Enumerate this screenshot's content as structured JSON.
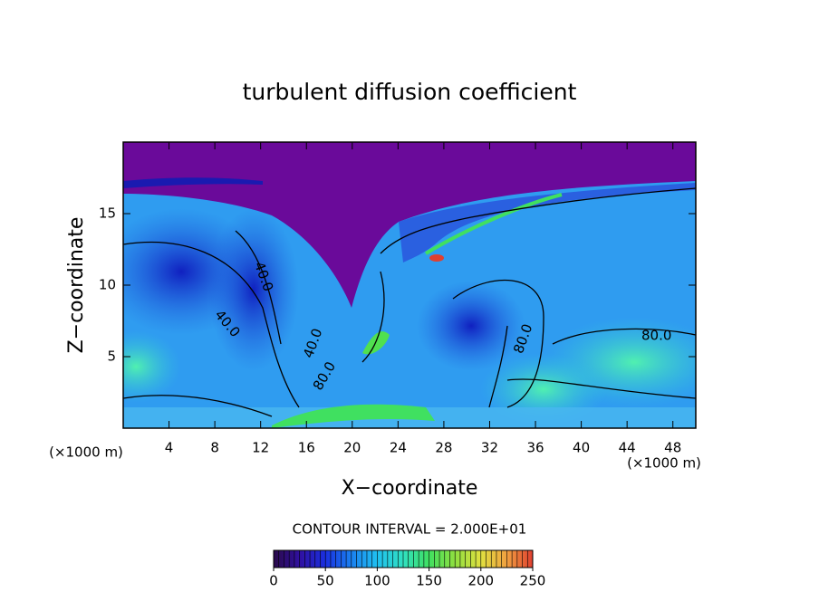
{
  "chart_data": {
    "type": "contour",
    "title": "turbulent diffusion coefficient",
    "x_label": "X−coordinate",
    "y_label": "Z−coordinate",
    "x_unit_left": "(×1000 m)",
    "x_unit_right": "(×1000 m)",
    "xlim": [
      0,
      50
    ],
    "xticks": [
      4,
      8,
      12,
      16,
      20,
      24,
      28,
      32,
      36,
      40,
      44,
      48
    ],
    "ylim": [
      0,
      20
    ],
    "yticks": [
      5,
      10,
      15
    ],
    "contour_interval_label": "CONTOUR INTERVAL = 2.000E+01",
    "annotations": [
      "40.0",
      "40.0",
      "80.0",
      "80.0",
      "40.0",
      "80.0"
    ],
    "colorbar": {
      "lim": [
        0,
        250
      ],
      "ticks": [
        0,
        50,
        100,
        150,
        200,
        250
      ],
      "colors": [
        "#2a0a4a",
        "#3010a0",
        "#1a30e0",
        "#1a80f0",
        "#20c0f0",
        "#30e0c0",
        "#40e060",
        "#90e040",
        "#e0e040",
        "#f0a040",
        "#e04030"
      ]
    }
  }
}
